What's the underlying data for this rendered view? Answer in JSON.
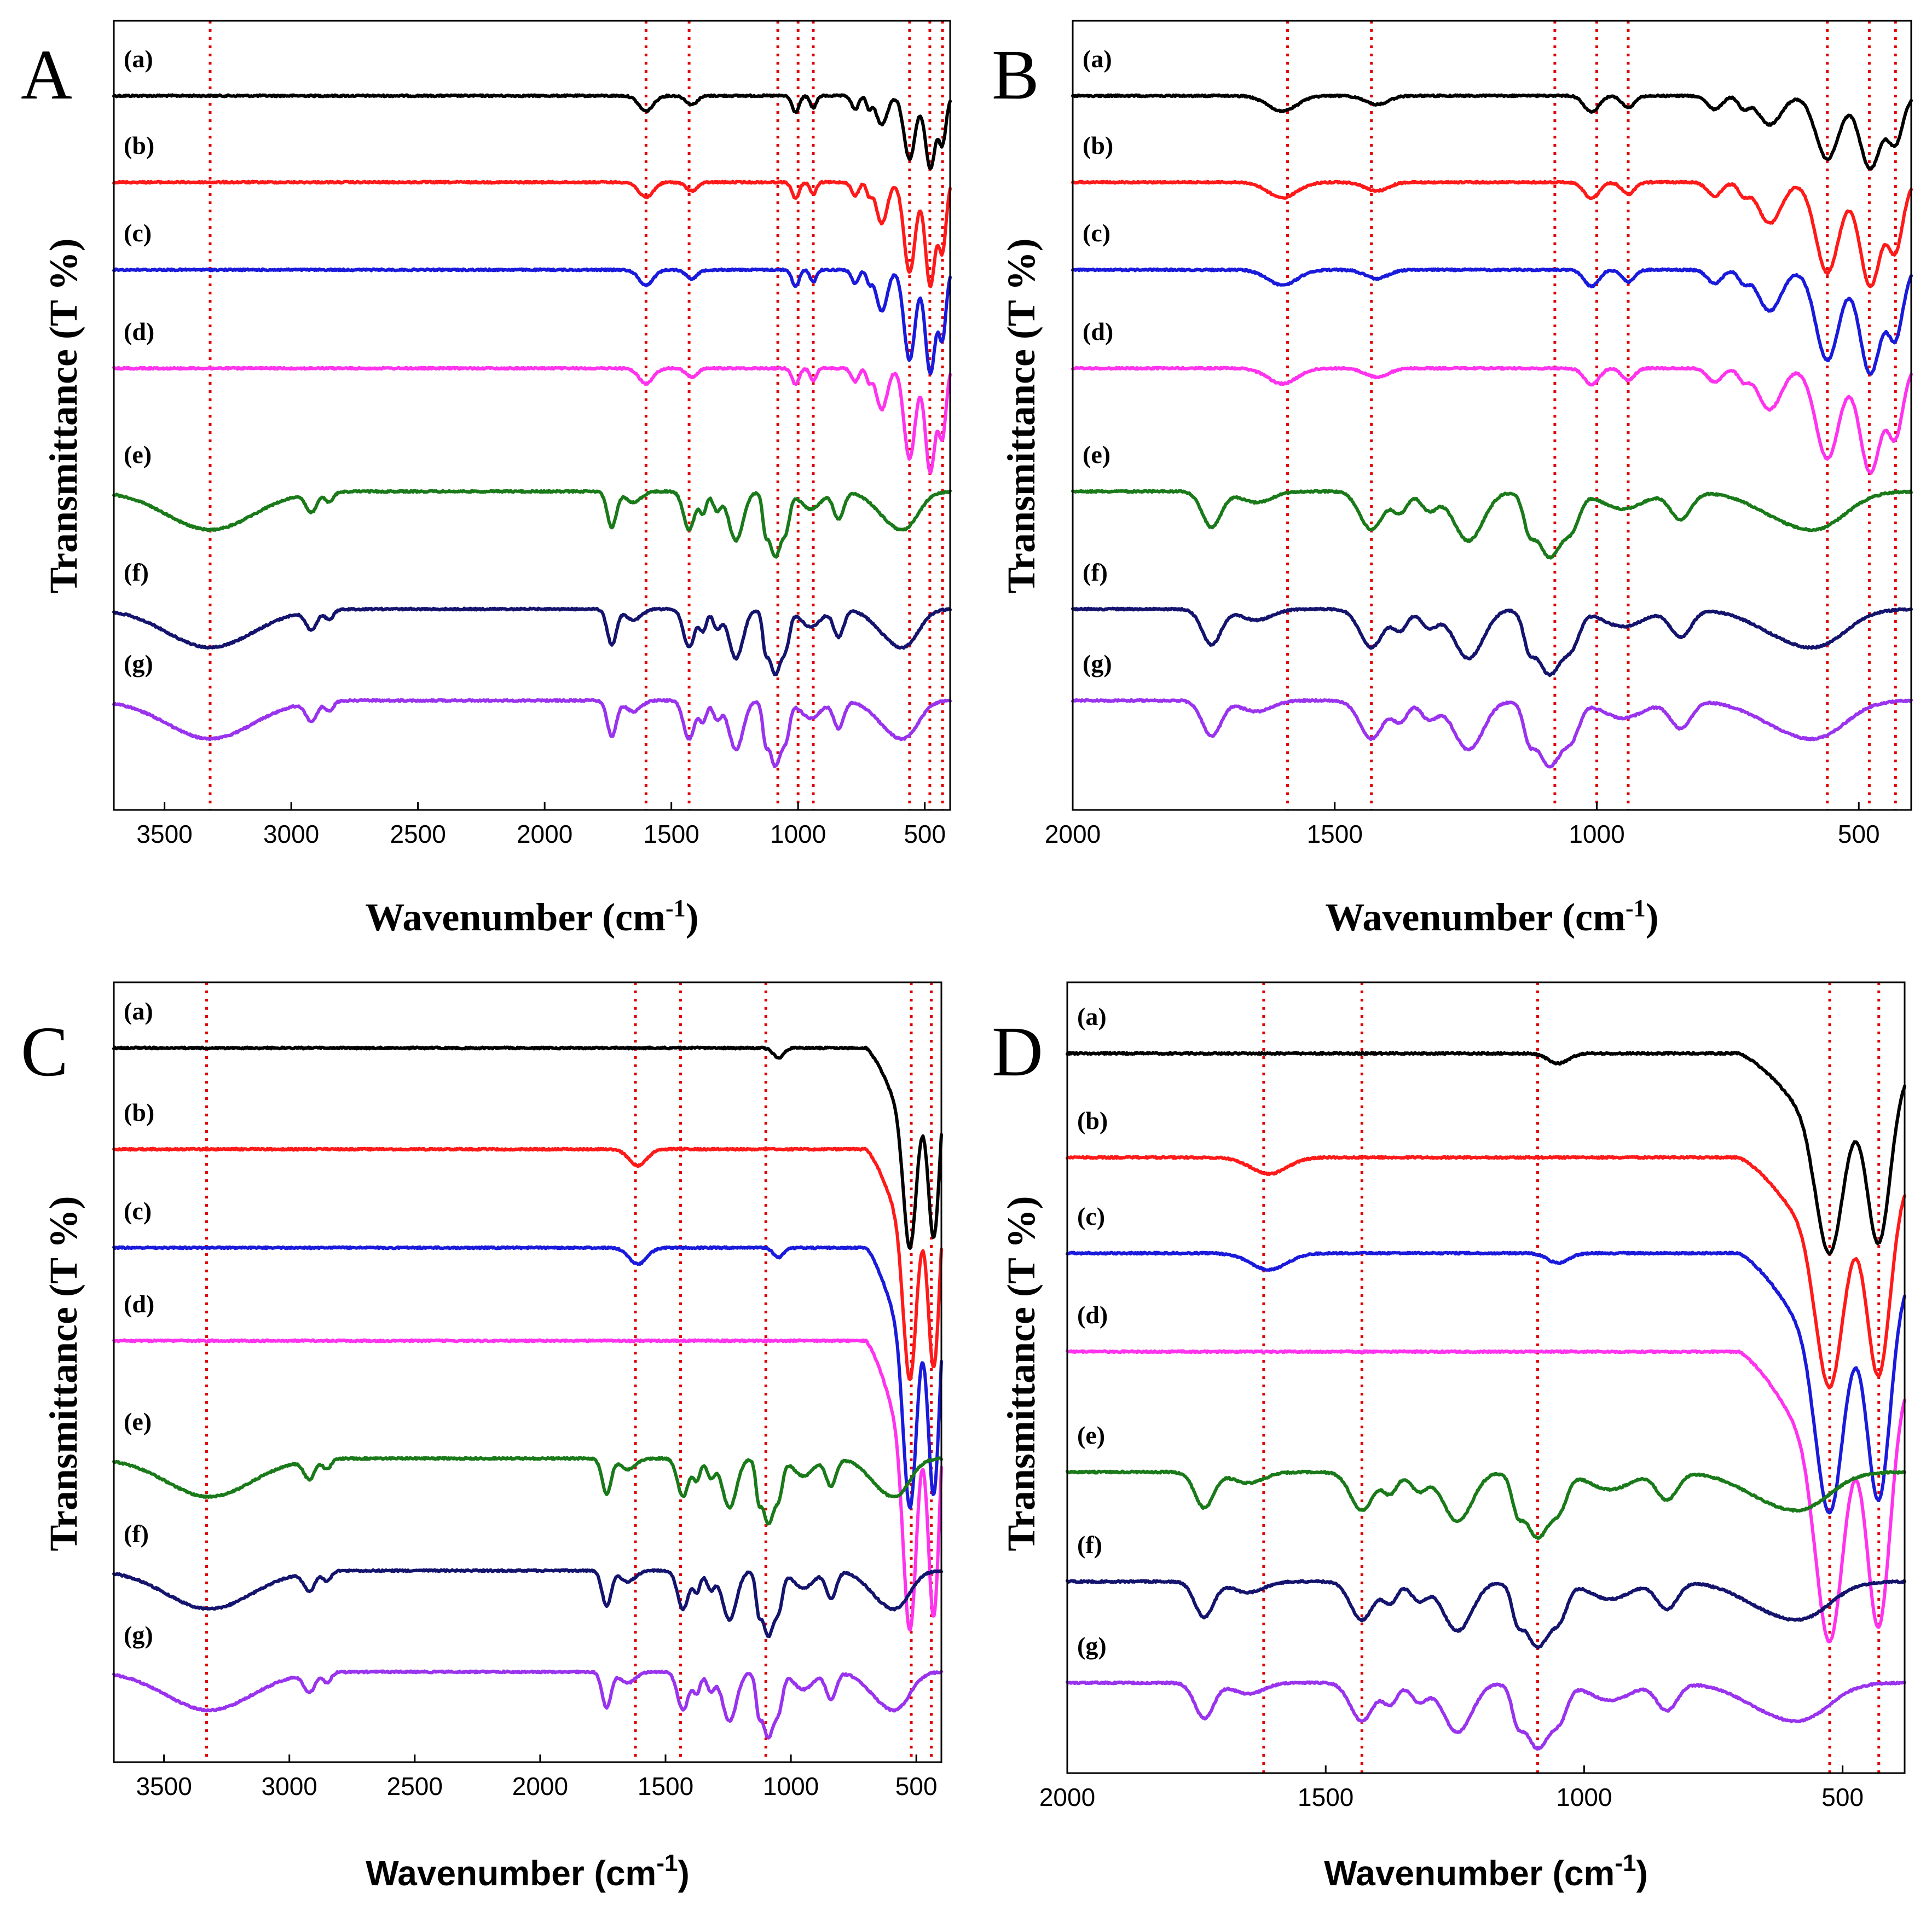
{
  "chart_data": [
    {
      "panel": "A",
      "type": "line",
      "title": "",
      "xlabel": "Wavenumber (cm-1)",
      "ylabel": "Transmittance (T %)",
      "xlim": [
        3700,
        400
      ],
      "xticks": [
        3500,
        3000,
        2500,
        2000,
        1500,
        1000,
        500
      ],
      "markers": [
        3320,
        1600,
        1430,
        1080,
        1000,
        940,
        560,
        480,
        430
      ],
      "series": [
        {
          "name": "(a)",
          "color": "#000000",
          "type": "inorganic"
        },
        {
          "name": "(b)",
          "color": "#ff1a1a",
          "type": "inorganic"
        },
        {
          "name": "(c)",
          "color": "#1a1adc",
          "type": "inorganic"
        },
        {
          "name": "(d)",
          "color": "#ff33ee",
          "type": "inorganic"
        },
        {
          "name": "(e)",
          "color": "#1a7a1a",
          "type": "organic"
        },
        {
          "name": "(f)",
          "color": "#14146e",
          "type": "organic"
        },
        {
          "name": "(g)",
          "color": "#9933ee",
          "type": "organic"
        }
      ]
    },
    {
      "panel": "B",
      "type": "line",
      "title": "",
      "xlabel": "Wavenumber (cm-1)",
      "ylabel": "Transmittance (T %)",
      "xlim": [
        2000,
        400
      ],
      "xticks": [
        2000,
        1500,
        1000,
        500
      ],
      "markers": [
        1590,
        1430,
        1080,
        1000,
        940,
        560,
        480,
        430
      ],
      "series": [
        {
          "name": "(a)",
          "color": "#000000",
          "type": "inorganic"
        },
        {
          "name": "(b)",
          "color": "#ff1a1a",
          "type": "inorganic"
        },
        {
          "name": "(c)",
          "color": "#1a1adc",
          "type": "inorganic"
        },
        {
          "name": "(d)",
          "color": "#ff33ee",
          "type": "inorganic"
        },
        {
          "name": "(e)",
          "color": "#1a7a1a",
          "type": "organic"
        },
        {
          "name": "(f)",
          "color": "#14146e",
          "type": "organic"
        },
        {
          "name": "(g)",
          "color": "#9933ee",
          "type": "organic"
        }
      ]
    },
    {
      "panel": "C",
      "type": "line",
      "title": "",
      "xlabel": "Wavenumber (cm-1)",
      "ylabel": "Transmittance (T %)",
      "xlim": [
        3700,
        400
      ],
      "xticks": [
        3500,
        3000,
        2500,
        2000,
        1500,
        1000,
        500
      ],
      "markers": [
        3330,
        1620,
        1440,
        1100,
        520,
        440
      ],
      "series": [
        {
          "name": "(a)",
          "color": "#000000",
          "type": "spinel"
        },
        {
          "name": "(b)",
          "color": "#ff1a1a",
          "type": "spinel"
        },
        {
          "name": "(c)",
          "color": "#1a1adc",
          "type": "spinel"
        },
        {
          "name": "(d)",
          "color": "#ff33ee",
          "type": "spinel"
        },
        {
          "name": "(e)",
          "color": "#1a7a1a",
          "type": "organic"
        },
        {
          "name": "(f)",
          "color": "#14146e",
          "type": "organic"
        },
        {
          "name": "(g)",
          "color": "#9933ee",
          "type": "organic"
        }
      ]
    },
    {
      "panel": "D",
      "type": "line",
      "title": "",
      "xlabel": "Wavenumber (cm-1)",
      "ylabel": "Transmittance (T %)",
      "xlim": [
        2000,
        380
      ],
      "xticks": [
        2000,
        1500,
        1000,
        500
      ],
      "markers": [
        1620,
        1430,
        1090,
        525,
        430
      ],
      "series": [
        {
          "name": "(a)",
          "color": "#000000",
          "type": "spinel"
        },
        {
          "name": "(b)",
          "color": "#ff1a1a",
          "type": "spinel"
        },
        {
          "name": "(c)",
          "color": "#1a1adc",
          "type": "spinel"
        },
        {
          "name": "(d)",
          "color": "#ff33ee",
          "type": "spinel"
        },
        {
          "name": "(e)",
          "color": "#1a7a1a",
          "type": "organic"
        },
        {
          "name": "(f)",
          "color": "#14146e",
          "type": "organic"
        },
        {
          "name": "(g)",
          "color": "#9933ee",
          "type": "organic"
        }
      ]
    }
  ]
}
